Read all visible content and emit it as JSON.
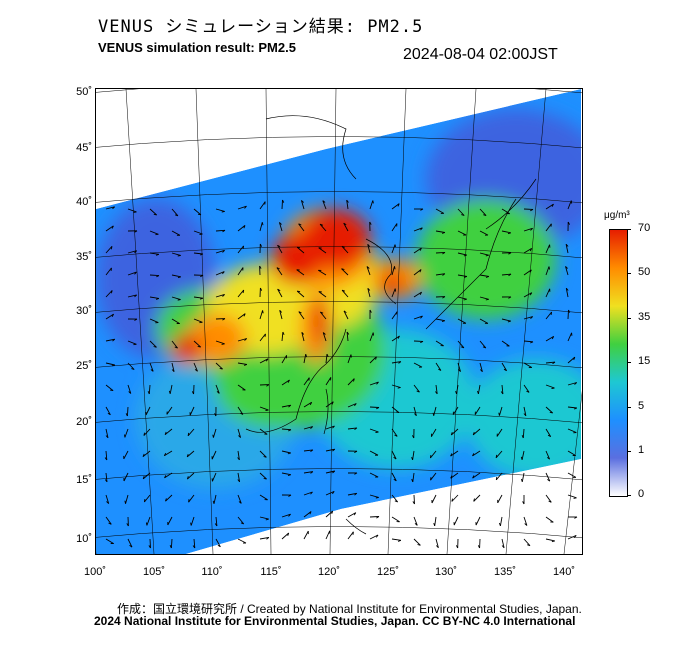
{
  "header": {
    "title_jp": "VENUS シミュレーション結果: PM2.5",
    "title_en": "VENUS simulation result: PM2.5",
    "timestamp": "2024-08-04 02:00JST"
  },
  "map": {
    "lat_labels": [
      "50˚",
      "45˚",
      "40˚",
      "35˚",
      "30˚",
      "25˚",
      "20˚",
      "15˚",
      "10˚"
    ],
    "lon_labels": [
      "100˚",
      "105˚",
      "110˚",
      "115˚",
      "120˚",
      "125˚",
      "130˚",
      "135˚",
      "140˚"
    ]
  },
  "colorbar": {
    "unit": "μg/m³",
    "ticks": [
      "70",
      "50",
      "35",
      "15",
      "5",
      "1",
      "0"
    ],
    "colors": [
      "#ffffff",
      "#5a6fe0",
      "#1e90ff",
      "#1ec8d2",
      "#40d040",
      "#f0e020",
      "#ff8c00",
      "#e61e00"
    ]
  },
  "footer": {
    "credit": "作成：国立環境研究所 / Created by National Institute for Environmental Studies, Japan.",
    "copyright": "2024 National Institute for Environmental Studies, Japan. CC BY-NC 4.0 International"
  }
}
